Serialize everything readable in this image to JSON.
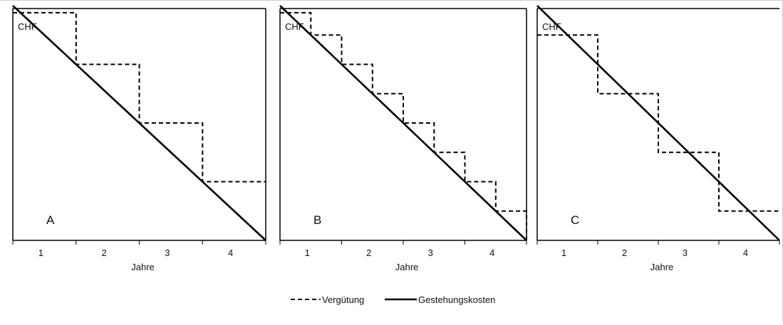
{
  "chart_data": [
    {
      "type": "line",
      "panel_label": "A",
      "unit_label": "CHF",
      "xlabel": "Jahre",
      "categories": [
        "1",
        "2",
        "3",
        "4"
      ],
      "xlim": [
        0,
        4
      ],
      "ylim": [
        0,
        1
      ],
      "series": [
        {
          "name": "Vergütung",
          "style": "dashed",
          "step": true,
          "x": [
            0,
            1,
            1,
            2,
            2,
            3,
            3,
            4
          ],
          "y": [
            0.97,
            0.97,
            0.75,
            0.75,
            0.5,
            0.5,
            0.25,
            0.25
          ]
        },
        {
          "name": "Gestehungskosten",
          "style": "solid",
          "x": [
            0,
            4
          ],
          "y": [
            1.0,
            0.0
          ]
        }
      ]
    },
    {
      "type": "line",
      "panel_label": "B",
      "unit_label": "CHF",
      "xlabel": "Jahre",
      "categories": [
        "1",
        "2",
        "3",
        "4"
      ],
      "xlim": [
        0,
        4
      ],
      "ylim": [
        0,
        1
      ],
      "series": [
        {
          "name": "Vergütung",
          "style": "dashed",
          "step": true,
          "x": [
            0,
            0.5,
            0.5,
            1,
            1,
            1.5,
            1.5,
            2,
            2,
            2.5,
            2.5,
            3,
            3,
            3.5,
            3.5,
            4,
            4
          ],
          "y": [
            0.97,
            0.97,
            0.875,
            0.875,
            0.75,
            0.75,
            0.625,
            0.625,
            0.5,
            0.5,
            0.375,
            0.375,
            0.25,
            0.25,
            0.125,
            0.125,
            0.0
          ]
        },
        {
          "name": "Gestehungskosten",
          "style": "solid",
          "x": [
            0,
            4
          ],
          "y": [
            1.0,
            0.0
          ]
        }
      ]
    },
    {
      "type": "line",
      "panel_label": "C",
      "unit_label": "CHF",
      "xlabel": "Jahre",
      "categories": [
        "1",
        "2",
        "3",
        "4"
      ],
      "xlim": [
        0,
        4
      ],
      "ylim": [
        0,
        1
      ],
      "series": [
        {
          "name": "Vergütung",
          "style": "dashed",
          "step": true,
          "x": [
            0,
            1,
            1,
            2,
            2,
            3,
            3,
            4
          ],
          "y": [
            0.875,
            0.875,
            0.625,
            0.625,
            0.375,
            0.375,
            0.125,
            0.125
          ]
        },
        {
          "name": "Gestehungskosten",
          "style": "solid",
          "x": [
            0,
            4
          ],
          "y": [
            1.0,
            0.0
          ]
        }
      ]
    }
  ],
  "legend": {
    "items": [
      {
        "label": "Vergütung",
        "style": "dashed"
      },
      {
        "label": "Gestehungskosten",
        "style": "solid"
      }
    ]
  }
}
